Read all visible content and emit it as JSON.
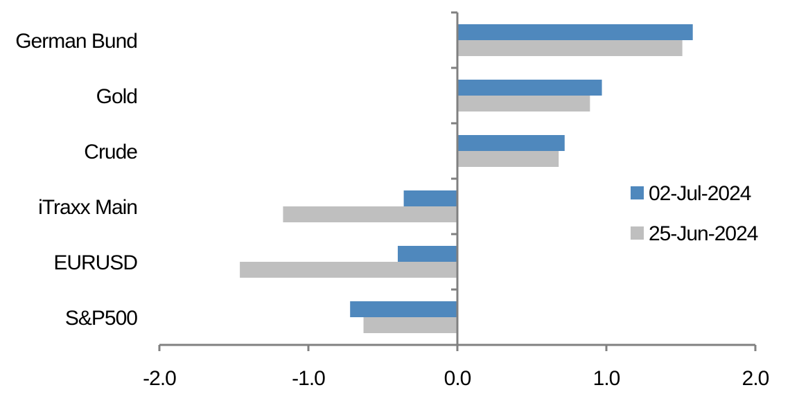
{
  "chart_data": {
    "type": "bar",
    "orientation": "horizontal",
    "categories": [
      "German Bund",
      "Gold",
      "Crude",
      "iTraxx Main",
      "EURUSD",
      "S&P500"
    ],
    "series": [
      {
        "name": "02-Jul-2024",
        "color": "#4f88bd",
        "values": [
          1.58,
          0.97,
          0.72,
          -0.36,
          -0.4,
          -0.72
        ]
      },
      {
        "name": "25-Jun-2024",
        "color": "#bfbfbf",
        "values": [
          1.51,
          0.89,
          0.68,
          -1.17,
          -1.46,
          -0.63
        ]
      }
    ],
    "xlim": [
      -2.0,
      2.0
    ],
    "xticks": [
      "-2.0",
      "-1.0",
      "0.0",
      "1.0",
      "2.0"
    ],
    "grid": false,
    "legend_position": "right",
    "axis_color": "#808080"
  }
}
